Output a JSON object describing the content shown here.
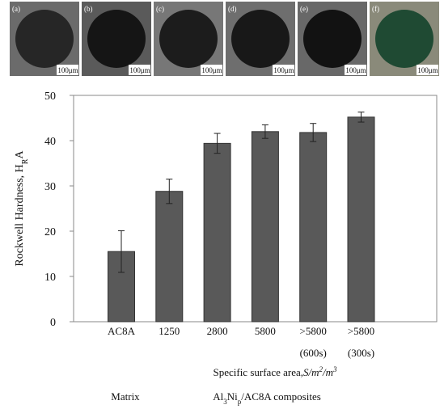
{
  "micrographs": [
    {
      "label": "(a)",
      "scale": "100μm"
    },
    {
      "label": "(b)",
      "scale": "100μm"
    },
    {
      "label": "(c)",
      "scale": "100μm"
    },
    {
      "label": "(d)",
      "scale": "100μm"
    },
    {
      "label": "(e)",
      "scale": "100μm"
    },
    {
      "label": "(f)",
      "scale": "100μm"
    }
  ],
  "chart_data": {
    "type": "bar",
    "y_label": {
      "text": "Rockwell Hardness, H",
      "sub": "R",
      "after": "A"
    },
    "x_label": {
      "text": "Specific surface area,",
      "var": "S/m",
      "sup1": "2",
      "mid": "/m",
      "sup2": "3"
    },
    "group_labels": [
      {
        "text": "Matrix"
      },
      {
        "text": "Al",
        "sub1": "3",
        "mid": "Ni",
        "sub2": "p",
        "after": "/AC8A  composites"
      }
    ],
    "categories": [
      "AC8A",
      "1250",
      "2800",
      "5800",
      ">5800",
      ">5800"
    ],
    "category_sublabels": [
      null,
      null,
      null,
      null,
      "(600s)",
      "(300s)"
    ],
    "values": [
      15.5,
      28.8,
      39.4,
      42.0,
      41.8,
      45.2
    ],
    "errors": [
      4.6,
      2.7,
      2.2,
      1.5,
      2.0,
      1.1
    ],
    "color": "#595959",
    "ylim": [
      0,
      50
    ],
    "yticks": [
      0,
      10,
      20,
      30,
      40,
      50
    ],
    "grid": false
  }
}
